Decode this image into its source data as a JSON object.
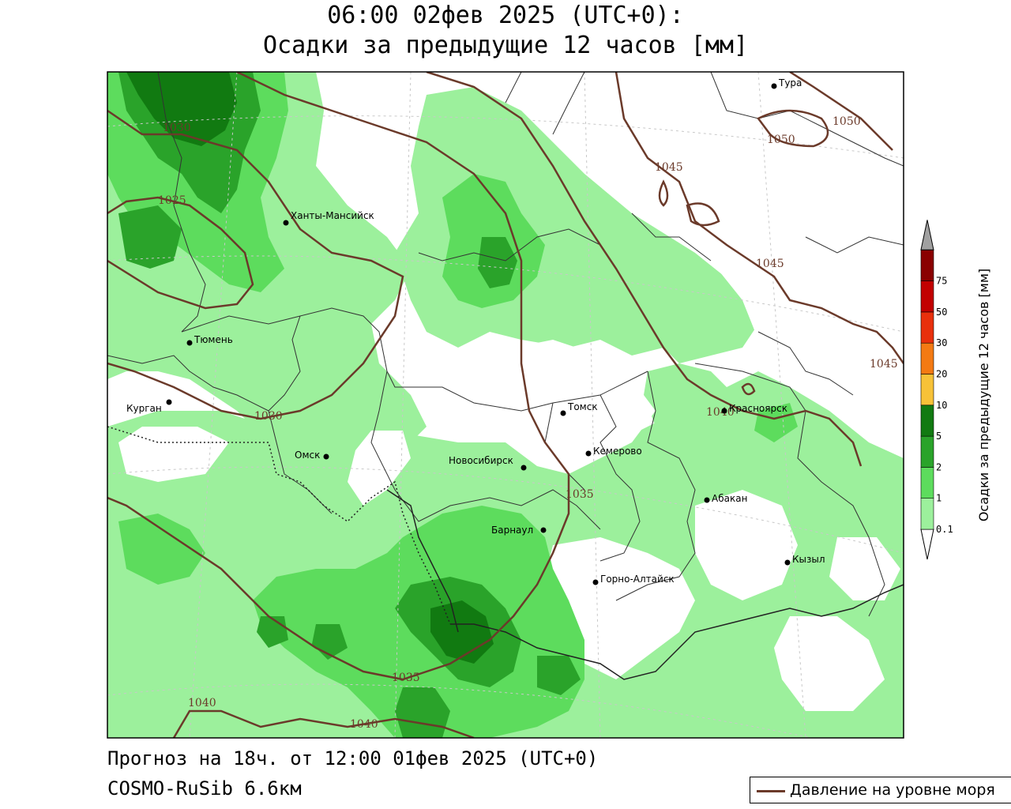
{
  "header": {
    "title_line1": "06:00 02фев 2025 (UTC+0):",
    "title_line2": "Осадки за предыдущие 12 часов [мм]"
  },
  "footer": {
    "forecast": "Прогноз на 18ч. от 12:00 01фев 2025 (UTC+0)",
    "model": "COSMO-RuSib 6.6км"
  },
  "legend": {
    "pressure_label": "Давление на уровне моря",
    "pressure_color": "#6b3a2a"
  },
  "colorbar": {
    "title": "Осадки за предыдущие 12 часов [мм]",
    "levels": [
      {
        "label": "0.1",
        "color": "#9cf09c"
      },
      {
        "label": "1",
        "color": "#5ddc5d"
      },
      {
        "label": "2",
        "color": "#2aa32a"
      },
      {
        "label": "5",
        "color": "#117a11"
      },
      {
        "label": "10",
        "color": "#f7c238"
      },
      {
        "label": "20",
        "color": "#f47a13"
      },
      {
        "label": "30",
        "color": "#e8300c"
      },
      {
        "label": "50",
        "color": "#c20000"
      },
      {
        "label": "75",
        "color": "#8a0000"
      }
    ],
    "over_color": "#a0a0a0"
  },
  "cities": [
    {
      "name": "Тура"
    },
    {
      "name": "Ханты-Мансийск"
    },
    {
      "name": "Тюмень"
    },
    {
      "name": "Курган"
    },
    {
      "name": "Омск"
    },
    {
      "name": "Новосибирск"
    },
    {
      "name": "Томск"
    },
    {
      "name": "Кемерово"
    },
    {
      "name": "Красноярск"
    },
    {
      "name": "Абакан"
    },
    {
      "name": "Барнаул"
    },
    {
      "name": "Горно-Алтайск"
    },
    {
      "name": "Кызыл"
    }
  ],
  "isobar_labels": [
    {
      "text": "1030"
    },
    {
      "text": "1025"
    },
    {
      "text": "1030"
    },
    {
      "text": "1035"
    },
    {
      "text": "1035"
    },
    {
      "text": "1040"
    },
    {
      "text": "1040"
    },
    {
      "text": "1040"
    },
    {
      "text": "1045"
    },
    {
      "text": "1045"
    },
    {
      "text": "1045"
    },
    {
      "text": "1050"
    },
    {
      "text": "1050"
    }
  ]
}
